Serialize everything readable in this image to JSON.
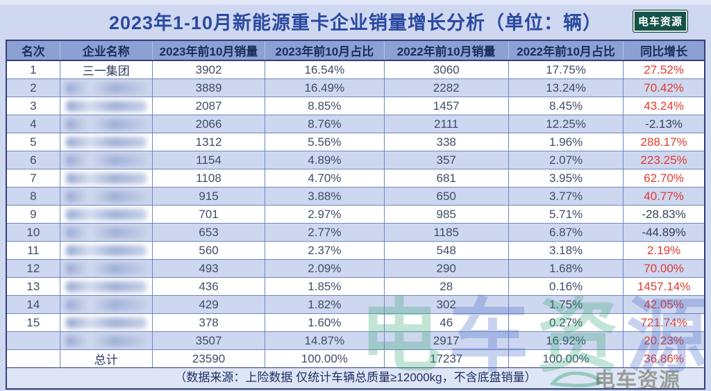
{
  "title": "2023年1-10月新能源重卡企业销量增长分析（单位：辆）",
  "logo": {
    "text": "电车资源"
  },
  "table": {
    "headers": [
      "名次",
      "企业名称",
      "2023年前10月销量",
      "2023年前10月占比",
      "2022年前10月销量",
      "2022年前10月占比",
      "同比增长"
    ],
    "rows": [
      {
        "rank": "1",
        "company": "三一集团",
        "redacted": false,
        "sales2023": "3902",
        "share2023": "16.54%",
        "sales2022": "3060",
        "share2022": "17.75%",
        "growth": "27.52%",
        "negative": false
      },
      {
        "rank": "2",
        "company": "",
        "redacted": true,
        "sales2023": "3889",
        "share2023": "16.49%",
        "sales2022": "2282",
        "share2022": "13.24%",
        "growth": "70.42%",
        "negative": false
      },
      {
        "rank": "3",
        "company": "",
        "redacted": true,
        "sales2023": "2087",
        "share2023": "8.85%",
        "sales2022": "1457",
        "share2022": "8.45%",
        "growth": "43.24%",
        "negative": false
      },
      {
        "rank": "4",
        "company": "",
        "redacted": true,
        "sales2023": "2066",
        "share2023": "8.76%",
        "sales2022": "2111",
        "share2022": "12.25%",
        "growth": "-2.13%",
        "negative": true
      },
      {
        "rank": "5",
        "company": "",
        "redacted": true,
        "sales2023": "1312",
        "share2023": "5.56%",
        "sales2022": "338",
        "share2022": "1.96%",
        "growth": "288.17%",
        "negative": false
      },
      {
        "rank": "6",
        "company": "",
        "redacted": true,
        "sales2023": "1154",
        "share2023": "4.89%",
        "sales2022": "357",
        "share2022": "2.07%",
        "growth": "223.25%",
        "negative": false
      },
      {
        "rank": "7",
        "company": "",
        "redacted": true,
        "sales2023": "1108",
        "share2023": "4.70%",
        "sales2022": "681",
        "share2022": "3.95%",
        "growth": "62.70%",
        "negative": false
      },
      {
        "rank": "8",
        "company": "",
        "redacted": true,
        "sales2023": "915",
        "share2023": "3.88%",
        "sales2022": "650",
        "share2022": "3.77%",
        "growth": "40.77%",
        "negative": false
      },
      {
        "rank": "9",
        "company": "",
        "redacted": true,
        "sales2023": "701",
        "share2023": "2.97%",
        "sales2022": "985",
        "share2022": "5.71%",
        "growth": "-28.83%",
        "negative": true
      },
      {
        "rank": "10",
        "company": "",
        "redacted": true,
        "sales2023": "653",
        "share2023": "2.77%",
        "sales2022": "1185",
        "share2022": "6.87%",
        "growth": "-44.89%",
        "negative": true
      },
      {
        "rank": "11",
        "company": "",
        "redacted": true,
        "sales2023": "560",
        "share2023": "2.37%",
        "sales2022": "548",
        "share2022": "3.18%",
        "growth": "2.19%",
        "negative": false
      },
      {
        "rank": "12",
        "company": "",
        "redacted": true,
        "sales2023": "493",
        "share2023": "2.09%",
        "sales2022": "290",
        "share2022": "1.68%",
        "growth": "70.00%",
        "negative": false
      },
      {
        "rank": "13",
        "company": "",
        "redacted": true,
        "sales2023": "436",
        "share2023": "1.85%",
        "sales2022": "28",
        "share2022": "0.16%",
        "growth": "1457.14%",
        "negative": false
      },
      {
        "rank": "14",
        "company": "",
        "redacted": true,
        "sales2023": "429",
        "share2023": "1.82%",
        "sales2022": "302",
        "share2022": "1.75%",
        "growth": "42.05%",
        "negative": false
      },
      {
        "rank": "15",
        "company": "",
        "redacted": true,
        "sales2023": "378",
        "share2023": "1.60%",
        "sales2022": "46",
        "share2022": "0.27%",
        "growth": "721.74%",
        "negative": false
      },
      {
        "rank": "",
        "company": "",
        "redacted": true,
        "sales2023": "3507",
        "share2023": "14.87%",
        "sales2022": "2917",
        "share2022": "16.92%",
        "growth": "20.23%",
        "negative": false
      }
    ],
    "total_row": {
      "rank": "",
      "company": "总计",
      "redacted": false,
      "sales2023": "23590",
      "share2023": "100.00%",
      "sales2022": "17237",
      "share2022": "100.00%",
      "growth": "36.86%",
      "negative": false
    }
  },
  "footer_note": "（数据来源：上险数据  仅统计车辆总质量≥12000kg，不含底盘销量）",
  "watermark": {
    "large_chars": [
      "电",
      "车",
      "资",
      "源"
    ],
    "small_text": "电车资源"
  },
  "colors": {
    "growth_positive": "#e13a2e",
    "growth_negative": "#333f5c",
    "header_bg": "#8ca0d3",
    "alt_row_bg": "#cdd7ef",
    "title_color": "#2b4aa0",
    "logo_bg": "#15524a"
  }
}
